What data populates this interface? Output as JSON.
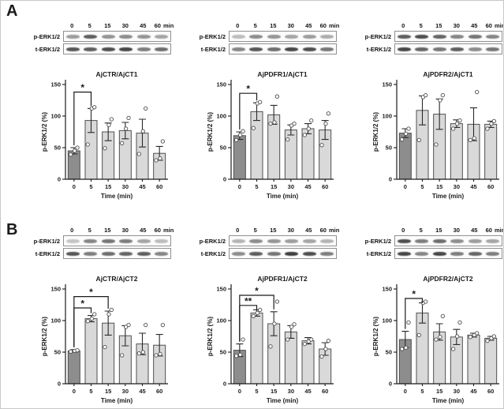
{
  "colors": {
    "control_bar": "#8d8d8d",
    "treatment_bar": "#d9d9d9",
    "bar_border": "#4f4f4f",
    "axis": "#1a1a1a",
    "error_bar": "#2a2a2a",
    "point_stroke": "#4d4d4d",
    "band": "#383838",
    "blot_border": "#909090"
  },
  "chart_data": [
    {
      "type": "bar",
      "panel": "A",
      "title": "AjCTR/AjCT1",
      "xlabel": "Time (min)",
      "ylabel": "p-ERK1/2 (%)",
      "ylim": [
        0,
        150
      ],
      "yticks": [
        0,
        50,
        100,
        150
      ],
      "categories": [
        "0",
        "5",
        "15",
        "30",
        "45",
        "60"
      ],
      "values": [
        45,
        93,
        75,
        77,
        73,
        41
      ],
      "errors": [
        5,
        19,
        14,
        13,
        22,
        11
      ],
      "points": [
        [
          39,
          45,
          50
        ],
        [
          55,
          112,
          114
        ],
        [
          49,
          86,
          95
        ],
        [
          57,
          80,
          97
        ],
        [
          40,
          76,
          112
        ],
        [
          30,
          33,
          60
        ]
      ],
      "significance": [
        {
          "from": 0,
          "to": 1,
          "label": "*",
          "y": 138
        }
      ]
    },
    {
      "type": "bar",
      "panel": "A",
      "title": "AjPDFR1/AjCT1",
      "xlabel": "Time (min)",
      "ylabel": "p-ERK1/2 (%)",
      "ylim": [
        0,
        150
      ],
      "yticks": [
        0,
        50,
        100,
        150
      ],
      "categories": [
        "0",
        "5",
        "15",
        "30",
        "45",
        "60"
      ],
      "values": [
        69,
        107,
        102,
        78,
        80,
        78
      ],
      "errors": [
        6,
        14,
        15,
        8,
        8,
        15
      ],
      "points": [
        [
          62,
          70,
          76
        ],
        [
          81,
          120,
          122
        ],
        [
          88,
          90,
          131
        ],
        [
          63,
          85,
          88
        ],
        [
          70,
          80,
          93
        ],
        [
          54,
          88,
          104
        ]
      ],
      "significance": [
        {
          "from": 0,
          "to": 1,
          "label": "*",
          "y": 136
        }
      ]
    },
    {
      "type": "bar",
      "panel": "A",
      "title": "AjPDFR2/AjCT1",
      "xlabel": "Time (min)",
      "ylabel": "p-ERK1/2 (%)",
      "ylim": [
        0,
        150
      ],
      "yticks": [
        0,
        50,
        100,
        150
      ],
      "categories": [
        "0",
        "5",
        "15",
        "30",
        "45",
        "60"
      ],
      "values": [
        73,
        109,
        103,
        88,
        87,
        87
      ],
      "errors": [
        7,
        23,
        24,
        6,
        26,
        5
      ],
      "points": [
        [
          63,
          72,
          80
        ],
        [
          62,
          130,
          133
        ],
        [
          55,
          125,
          133
        ],
        [
          80,
          88,
          93
        ],
        [
          62,
          65,
          138
        ],
        [
          80,
          88,
          92
        ]
      ],
      "significance": []
    },
    {
      "type": "bar",
      "panel": "B",
      "title": "AjCTR/AjCT2",
      "xlabel": "Time (min)",
      "ylabel": "p-ERK1/2 (%)",
      "ylim": [
        0,
        150
      ],
      "yticks": [
        0,
        50,
        100,
        150
      ],
      "categories": [
        "0",
        "5",
        "15",
        "30",
        "45",
        "60"
      ],
      "values": [
        52,
        103,
        96,
        76,
        63,
        61
      ],
      "errors": [
        2,
        5,
        19,
        16,
        17,
        17
      ],
      "points": [
        [
          51,
          52,
          53
        ],
        [
          99,
          103,
          110
        ],
        [
          58,
          110,
          117
        ],
        [
          45,
          90,
          93
        ],
        [
          48,
          50,
          93
        ],
        [
          45,
          47,
          93
        ]
      ],
      "significance": [
        {
          "from": 0,
          "to": 1,
          "label": "*",
          "y": 120
        },
        {
          "from": 0,
          "to": 2,
          "label": "*",
          "y": 138
        }
      ]
    },
    {
      "type": "bar",
      "panel": "B",
      "title": "AjPDFR1/AjCT2",
      "xlabel": "Time (min)",
      "ylabel": "p-ERK1/2 (%)",
      "ylim": [
        0,
        150
      ],
      "yticks": [
        0,
        50,
        100,
        150
      ],
      "categories": [
        "0",
        "5",
        "15",
        "30",
        "45",
        "60"
      ],
      "values": [
        53,
        112,
        95,
        82,
        68,
        55
      ],
      "errors": [
        10,
        5,
        19,
        10,
        5,
        10
      ],
      "points": [
        [
          44,
          46,
          70
        ],
        [
          107,
          112,
          117
        ],
        [
          59,
          95,
          130
        ],
        [
          70,
          90,
          94
        ],
        [
          63,
          67,
          70
        ],
        [
          43,
          55,
          68
        ]
      ],
      "significance": [
        {
          "from": 0,
          "to": 1,
          "label": "**",
          "y": 124
        },
        {
          "from": 0,
          "to": 2,
          "label": "*",
          "y": 140
        }
      ]
    },
    {
      "type": "bar",
      "panel": "B",
      "title": "AjPDFR2/AjCT2",
      "xlabel": "Time (min)",
      "ylabel": "p-ERK1/2 (%)",
      "ylim": [
        0,
        150
      ],
      "yticks": [
        0,
        50,
        100,
        150
      ],
      "categories": [
        "0",
        "5",
        "15",
        "30",
        "45",
        "60"
      ],
      "values": [
        70,
        112,
        82,
        74,
        77,
        72
      ],
      "errors": [
        13,
        16,
        13,
        12,
        3,
        3
      ],
      "points": [
        [
          55,
          57,
          97
        ],
        [
          77,
          128,
          130
        ],
        [
          70,
          74,
          107
        ],
        [
          55,
          75,
          97
        ],
        [
          74,
          77,
          80
        ],
        [
          68,
          72,
          75
        ]
      ],
      "significance": [
        {
          "from": 0,
          "to": 1,
          "label": "*",
          "y": 135
        }
      ]
    }
  ],
  "panels": [
    {
      "label": "A",
      "subpanels": [
        {
          "chart": 0,
          "blot": {
            "times": [
              "0",
              "5",
              "15",
              "30",
              "45",
              "60"
            ],
            "unit": "min",
            "rows": [
              {
                "label": "p-ERK1/2",
                "bands": [
                  0.35,
                  0.75,
                  0.4,
                  0.45,
                  0.4,
                  0.3
                ]
              },
              {
                "label": "t-ERK1/2",
                "bands": [
                  0.8,
                  0.75,
                  0.85,
                  0.9,
                  0.55,
                  0.65
                ]
              }
            ]
          }
        },
        {
          "chart": 1,
          "blot": {
            "times": [
              "0",
              "5",
              "15",
              "30",
              "45",
              "60"
            ],
            "unit": "min",
            "rows": [
              {
                "label": "p-ERK1/2",
                "bands": [
                  0.15,
                  0.45,
                  0.4,
                  0.3,
                  0.35,
                  0.25
                ]
              },
              {
                "label": "t-ERK1/2",
                "bands": [
                  0.5,
                  0.8,
                  0.65,
                  0.9,
                  0.85,
                  0.6
                ]
              }
            ]
          }
        },
        {
          "chart": 2,
          "blot": {
            "times": [
              "0",
              "5",
              "15",
              "30",
              "45",
              "60"
            ],
            "unit": "min",
            "rows": [
              {
                "label": "p-ERK1/2",
                "bands": [
                  0.75,
                  0.85,
                  0.7,
                  0.5,
                  0.6,
                  0.5
                ]
              },
              {
                "label": "t-ERK1/2",
                "bands": [
                  0.9,
                  0.7,
                  0.6,
                  0.75,
                  0.45,
                  0.6
                ]
              }
            ]
          }
        }
      ]
    },
    {
      "label": "B",
      "subpanels": [
        {
          "chart": 3,
          "blot": {
            "times": [
              "0",
              "5",
              "15",
              "30",
              "45",
              "60"
            ],
            "unit": "min",
            "rows": [
              {
                "label": "p-ERK1/2",
                "bands": [
                  0.1,
                  0.5,
                  0.6,
                  0.55,
                  0.3,
                  0.15
                ]
              },
              {
                "label": "t-ERK1/2",
                "bands": [
                  0.8,
                  0.55,
                  0.65,
                  0.7,
                  0.75,
                  0.5
                ]
              }
            ]
          }
        },
        {
          "chart": 4,
          "blot": {
            "times": [
              "0",
              "5",
              "15",
              "30",
              "45",
              "60"
            ],
            "unit": "min",
            "rows": [
              {
                "label": "p-ERK1/2",
                "bands": [
                  0.2,
                  0.45,
                  0.4,
                  0.35,
                  0.3,
                  0.2
                ]
              },
              {
                "label": "t-ERK1/2",
                "bands": [
                  0.45,
                  0.75,
                  0.6,
                  0.95,
                  0.85,
                  0.55
                ]
              }
            ]
          }
        },
        {
          "chart": 5,
          "blot": {
            "times": [
              "0",
              "5",
              "15",
              "30",
              "45",
              "60"
            ],
            "unit": "min",
            "rows": [
              {
                "label": "p-ERK1/2",
                "bands": [
                  0.85,
                  0.55,
                  0.65,
                  0.45,
                  0.35,
                  0.3
                ]
              },
              {
                "label": "t-ERK1/2",
                "bands": [
                  0.9,
                  0.5,
                  0.9,
                  0.55,
                  0.7,
                  0.55
                ]
              }
            ]
          }
        }
      ]
    }
  ]
}
